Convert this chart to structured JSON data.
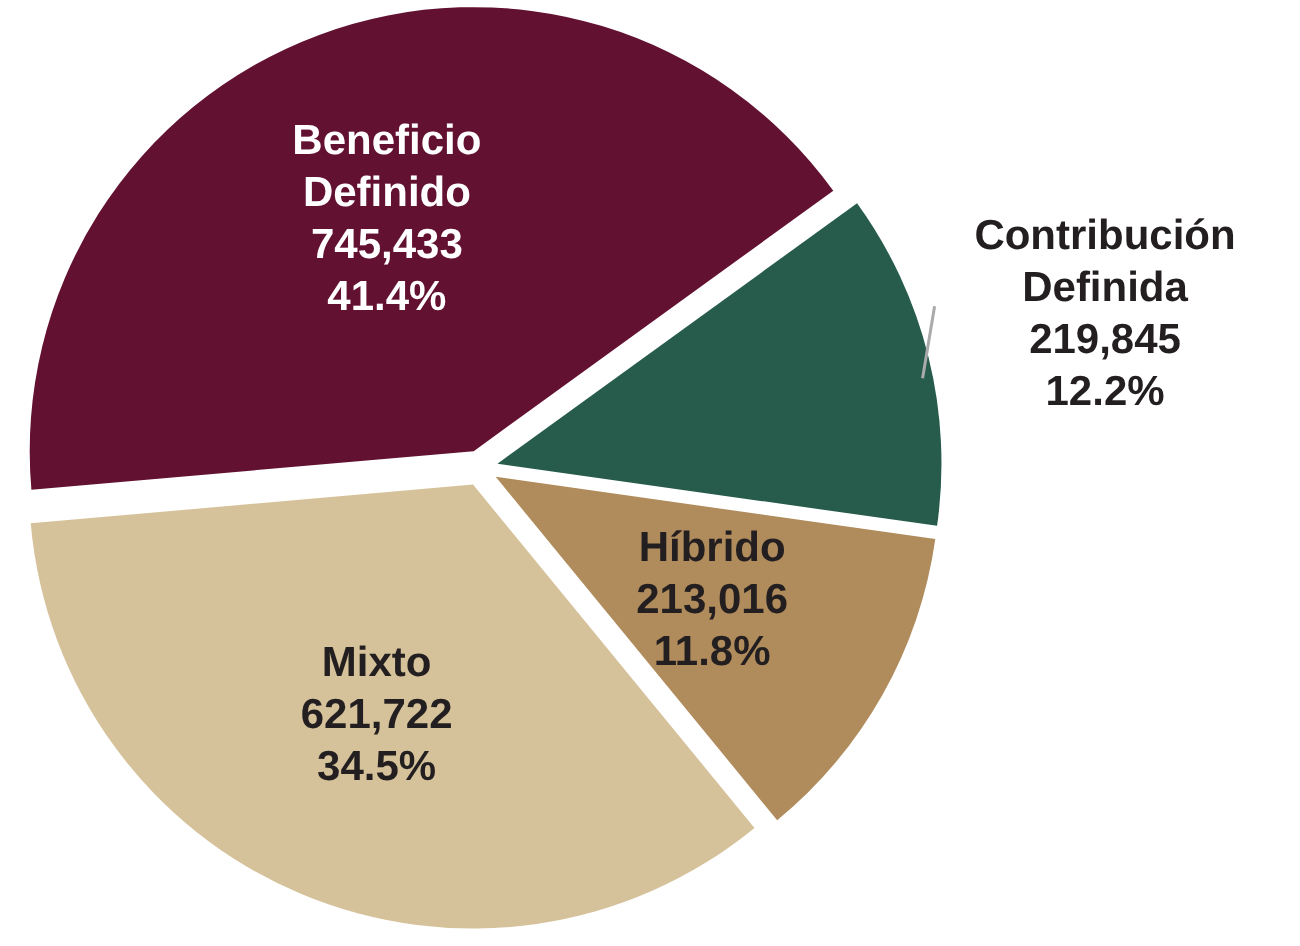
{
  "chart_data": {
    "type": "pie",
    "categories": [
      "Beneficio Definido",
      "Contribución Definida",
      "Híbrido",
      "Mixto"
    ],
    "values": [
      745433,
      219845,
      213016,
      621722
    ],
    "colors": [
      "#631131",
      "#275c4c",
      "#b08b5b",
      "#d6c29a"
    ],
    "value_labels": [
      "745,433\n41.4%",
      "219,845\n12.2%",
      "213,016\n11.8%",
      "621,722\n34.5%"
    ]
  }
}
